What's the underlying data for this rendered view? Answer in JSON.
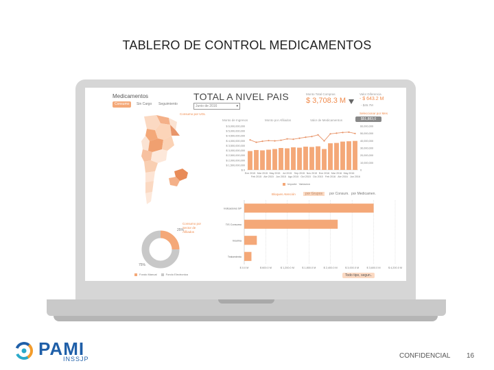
{
  "slide": {
    "title": "TABLERO DE CONTROL MEDICAMENTOS",
    "confidential": "CONFIDENCIAL",
    "page_number": "16"
  },
  "logo": {
    "name": "PAMI",
    "sub": "INSSJP",
    "colors": {
      "blue": "#1f5fa8",
      "orange": "#f39c2b",
      "teal": "#2aa9c9"
    }
  },
  "dashboard": {
    "app_title": "Medicamentos",
    "tabs": [
      "Consumo",
      "Sin Cargo",
      "Seguimiento"
    ],
    "main_title": "TOTAL A NIVEL PAIS",
    "period_select": "Junio de 2016",
    "kpis": {
      "amount_label": "Monto Total Compras",
      "amount_value": "$ 3,708.3 M",
      "alt_label": "Valor Diferencia",
      "alt_value": "- $ 643.2 M",
      "alt_sub": "- $45.7M"
    },
    "map_label": "Consumo por UGL",
    "chart_tabs": [
      "Monto de Ingresos",
      "Monto por Afiliados",
      "Valor de Medicamentos"
    ],
    "chart_right_label": "Seleccionar por Mes",
    "pill_label": "$51,883,0",
    "donut_labels": [
      "Consumo por",
      "Sector de",
      "Afiliados"
    ],
    "donut_value_right": "25%",
    "donut_value_bottom": "75%",
    "donut_legend": [
      "Fondo Manual",
      "Fondo Electronica"
    ],
    "hbar_title": "Bloques Atención",
    "hbar_tabs": [
      "por Grupos",
      "por Consum.",
      "por Medicamen."
    ],
    "btn_tipo": "Todo tipo, segun..",
    "combo_legend": [
      "Importe",
      "Variacion"
    ]
  },
  "chart_data": [
    {
      "type": "bar",
      "title": "",
      "categories": [
        "Ene 2015",
        "Feb 2015",
        "Mar 2015",
        "Abr 2015",
        "May 2015",
        "Jun 2015",
        "Jul 2015",
        "Ago 2015",
        "Sep 2015",
        "Oct 2015",
        "Nov 2015",
        "Dic 2015",
        "Ene 2016",
        "Feb 2016",
        "Mar 2016",
        "Abr 2016",
        "May 2016",
        "Jun 2016"
      ],
      "tick_labels_top": [
        "Ene 2015",
        "Mar 2015",
        "May 2015",
        "Jul 2015",
        "Sep 2015",
        "Nov 2015",
        "Ene 2016",
        "Mar 2016",
        "May 2016"
      ],
      "tick_labels_bottom": [
        "Feb 2015",
        "Abr 2015",
        "Jun 2015",
        "Ago 2015",
        "Oct 2015",
        "Dic 2015",
        "Feb 2016",
        "Abr 2016",
        "Jun 2016"
      ],
      "yticks_left": [
        "$ 6,000,000,000",
        "$ 5,000,000,000",
        "$ 4,500,000,000",
        "$ 4,000,000,000",
        "$ 3,500,000,000",
        "$ 3,000,000,000",
        "$ 2,500,000,000",
        "$ 2,000,000,000",
        "$ 1,500,000,000",
        "$ 0"
      ],
      "yticks_right": [
        "60,000,000",
        "50,000,000",
        "40,000,000",
        "30,000,000",
        "20,000,000",
        "10,000,000",
        "0"
      ],
      "series": [
        {
          "name": "Importe",
          "values": [
            2.8,
            2.95,
            2.9,
            3.0,
            3.1,
            3.25,
            3.2,
            3.35,
            3.3,
            3.45,
            3.4,
            3.5,
            3.1,
            3.95,
            4.0,
            4.2,
            4.25,
            4.3
          ]
        },
        {
          "name": "Variacion",
          "values": [
            4.45,
            4.1,
            4.25,
            4.35,
            4.3,
            4.4,
            4.6,
            4.55,
            4.7,
            4.85,
            4.95,
            5.2,
            4.3,
            5.35,
            5.45,
            5.55,
            5.6,
            5.4
          ]
        }
      ],
      "ylim": [
        0,
        6.5
      ]
    },
    {
      "type": "bar",
      "orientation": "horizontal",
      "categories": [
        "Indicadores SP",
        "TIS Consumo",
        "Insulina",
        "Tratamiento"
      ],
      "values": [
        3600000,
        2600000,
        350000,
        200000
      ],
      "xticks": [
        "$ 0.0 M",
        "$ 600.0 M",
        "$ 1,200.0 M",
        "$ 1,800.0 M",
        "$ 2,400.0 M",
        "$ 3,000.0 M",
        "$ 3,600.0 M",
        "$ 4,200.0 M"
      ],
      "xlim": [
        0,
        4200000
      ]
    },
    {
      "type": "pie",
      "categories": [
        "Fondo Manual",
        "Fondo Electronica"
      ],
      "values": [
        25,
        75
      ],
      "colors": [
        "#f4a878",
        "#c8c8c8"
      ]
    }
  ]
}
